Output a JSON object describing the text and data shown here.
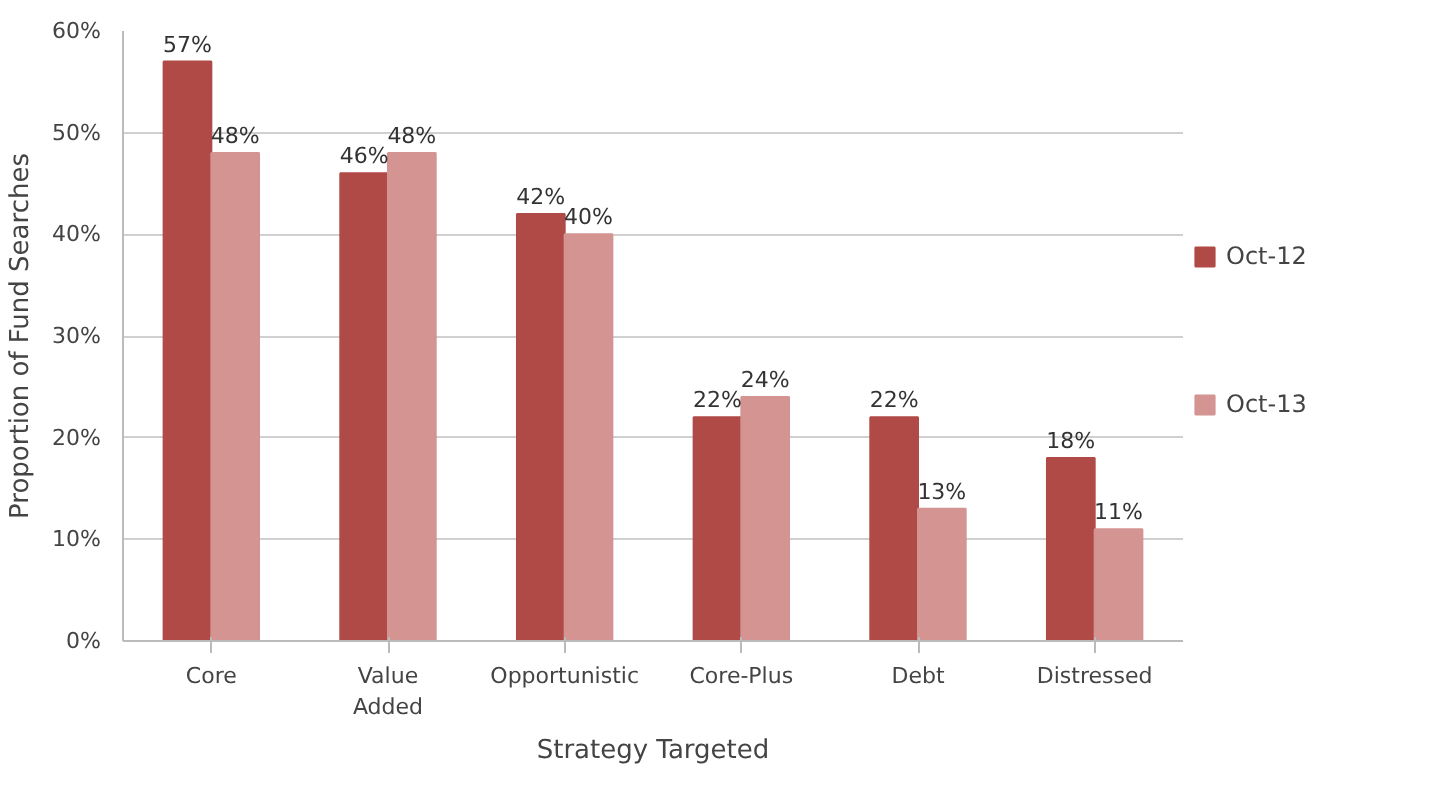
{
  "chart_data": {
    "type": "bar",
    "xlabel": "Strategy Targeted",
    "ylabel": "Proportion of Fund Searches",
    "categories": [
      "Core",
      "Value Added",
      "Opportunistic",
      "Core-Plus",
      "Debt",
      "Distressed"
    ],
    "series": [
      {
        "name": "Oct-12",
        "color": "#b04a46",
        "values": [
          57,
          46,
          42,
          22,
          22,
          18
        ],
        "value_labels": [
          "57%",
          "46%",
          "42%",
          "22%",
          "22%",
          "18%"
        ]
      },
      {
        "name": "Oct-13",
        "color": "#d49492",
        "values": [
          48,
          48,
          40,
          24,
          13,
          11
        ],
        "value_labels": [
          "48%",
          "48%",
          "40%",
          "24%",
          "13%",
          "11%"
        ]
      }
    ],
    "ylim": [
      0,
      60
    ],
    "yticks": [
      {
        "value": 0,
        "label": "0%"
      },
      {
        "value": 10,
        "label": "10%"
      },
      {
        "value": 20,
        "label": "20%"
      },
      {
        "value": 30,
        "label": "30%"
      },
      {
        "value": 40,
        "label": "40%"
      },
      {
        "value": 50,
        "label": "50%"
      },
      {
        "value": 60,
        "label": "60%"
      }
    ],
    "grid": "y",
    "legend": "right"
  }
}
